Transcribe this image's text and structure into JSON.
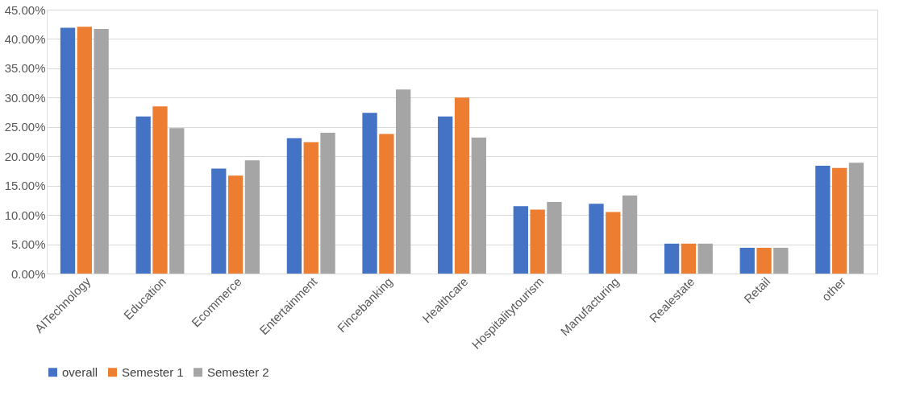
{
  "chart_data": {
    "type": "bar",
    "categories": [
      "AITechnology",
      "Education",
      "Ecommerce",
      "Entertainment",
      "Fincebanking",
      "Healthcare",
      "Hospitalitytourism",
      "Manufacturing",
      "Realestate",
      "Retail",
      "other"
    ],
    "series": [
      {
        "name": "overall",
        "color": "#4472c4",
        "values": [
          41.9,
          26.8,
          17.9,
          23.1,
          27.4,
          26.8,
          11.5,
          11.9,
          5.1,
          4.4,
          18.4
        ]
      },
      {
        "name": "Semester 1",
        "color": "#ed7d31",
        "values": [
          42.1,
          28.5,
          16.7,
          22.4,
          23.8,
          30.0,
          10.9,
          10.5,
          5.1,
          4.4,
          18.0
        ]
      },
      {
        "name": "Semester 2",
        "color": "#a5a5a5",
        "values": [
          41.7,
          24.8,
          19.3,
          24.0,
          31.4,
          23.2,
          12.2,
          13.3,
          5.1,
          4.4,
          18.9
        ]
      }
    ],
    "ylim": [
      0,
      45
    ],
    "yticks": [
      {
        "value": 0,
        "label": "0.00%"
      },
      {
        "value": 5,
        "label": "5.00%"
      },
      {
        "value": 10,
        "label": "10.00%"
      },
      {
        "value": 15,
        "label": "15.00%"
      },
      {
        "value": 20,
        "label": "20.00%"
      },
      {
        "value": 25,
        "label": "25.00%"
      },
      {
        "value": 30,
        "label": "30.00%"
      },
      {
        "value": 35,
        "label": "35.00%"
      },
      {
        "value": 40,
        "label": "40.00%"
      },
      {
        "value": 45,
        "label": "45.00%"
      }
    ],
    "grid": "y",
    "legend": "bottom"
  }
}
